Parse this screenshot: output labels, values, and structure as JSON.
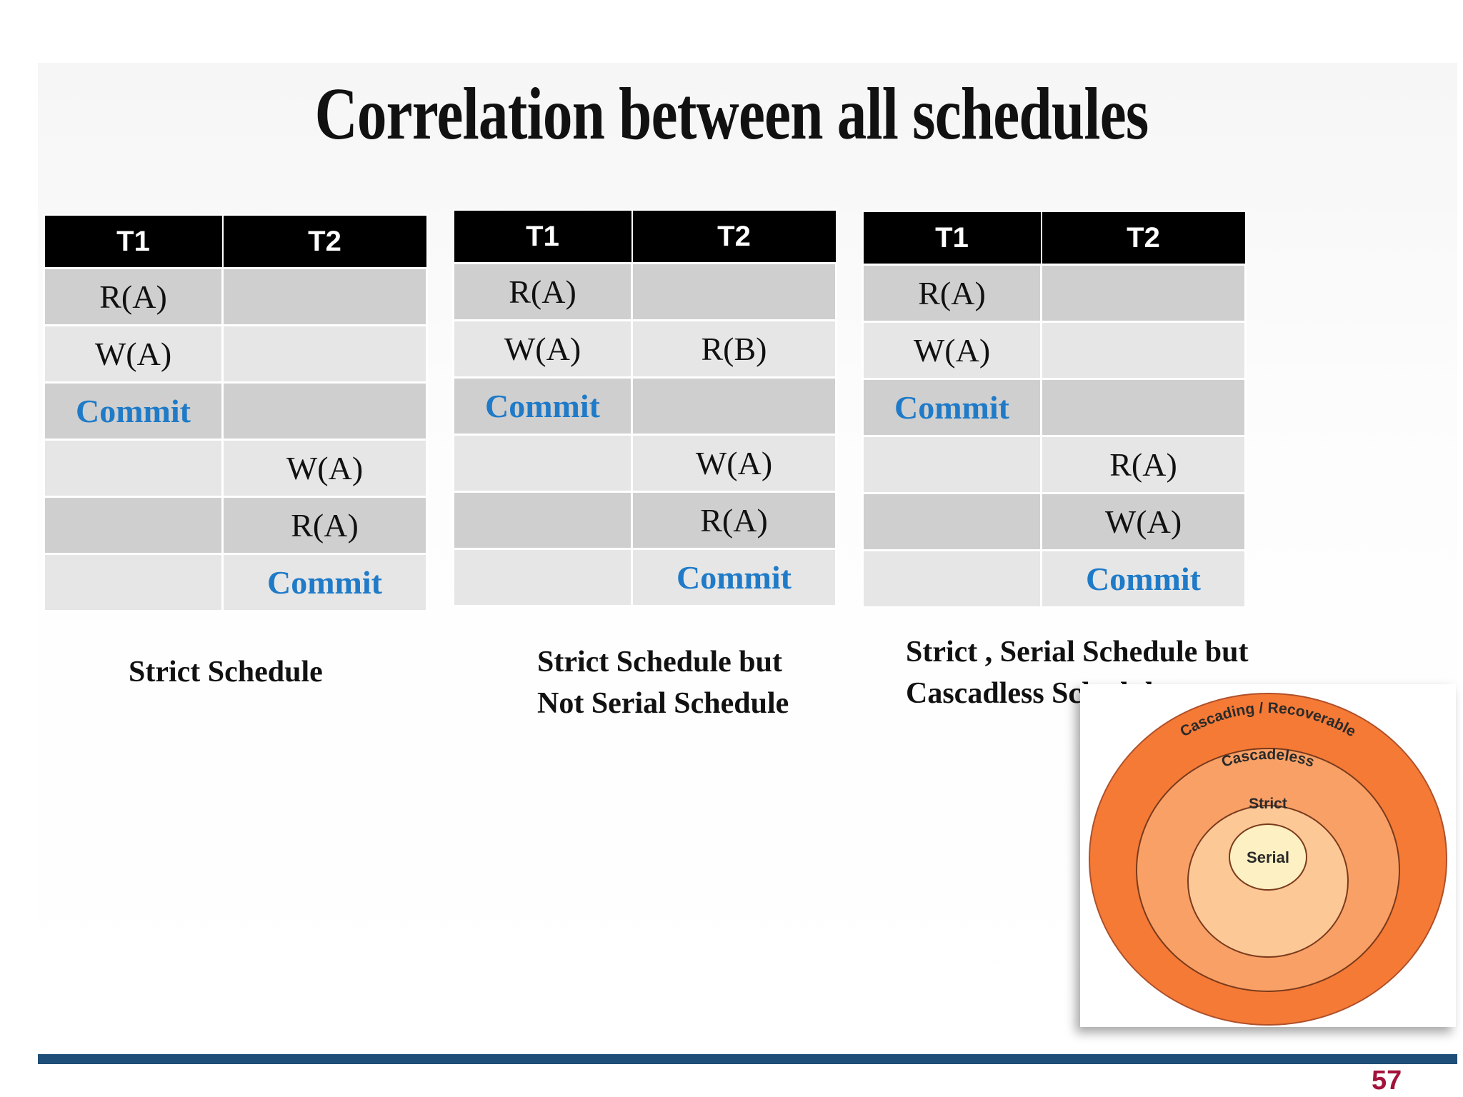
{
  "slide": {
    "title": "Correlation between all schedules",
    "page_number": "57"
  },
  "tables": [
    {
      "headers": [
        "T1",
        "T2"
      ],
      "rows": [
        [
          "R(A)",
          ""
        ],
        [
          "W(A)",
          ""
        ],
        [
          "Commit",
          ""
        ],
        [
          "",
          "W(A)"
        ],
        [
          "",
          "R(A)"
        ],
        [
          "",
          "Commit"
        ]
      ],
      "caption": [
        "Strict Schedule"
      ]
    },
    {
      "headers": [
        "T1",
        "T2"
      ],
      "rows": [
        [
          "R(A)",
          ""
        ],
        [
          "W(A)",
          "R(B)"
        ],
        [
          "Commit",
          ""
        ],
        [
          "",
          "W(A)"
        ],
        [
          "",
          "R(A)"
        ],
        [
          "",
          "Commit"
        ]
      ],
      "caption": [
        "Strict Schedule but",
        "Not Serial Schedule"
      ]
    },
    {
      "headers": [
        "T1",
        "T2"
      ],
      "rows": [
        [
          "R(A)",
          ""
        ],
        [
          "W(A)",
          ""
        ],
        [
          "Commit",
          ""
        ],
        [
          "",
          "R(A)"
        ],
        [
          "",
          "W(A)"
        ],
        [
          "",
          "Commit"
        ]
      ],
      "caption": [
        "Strict , Serial Schedule but",
        "Cascadless Schedule"
      ]
    }
  ],
  "diagram": {
    "rings": [
      {
        "label": "Cascading / Recoverable",
        "color": "#f47a35"
      },
      {
        "label": "Cascadeless",
        "color": "#f9a066"
      },
      {
        "label": "Strict",
        "color": "#fcc896"
      },
      {
        "label": "Serial",
        "color": "#fdf0c2"
      }
    ]
  },
  "colors": {
    "commit_text": "#1f7ac8",
    "footer_bar": "#1f4e79",
    "page_number": "#a3123b"
  }
}
